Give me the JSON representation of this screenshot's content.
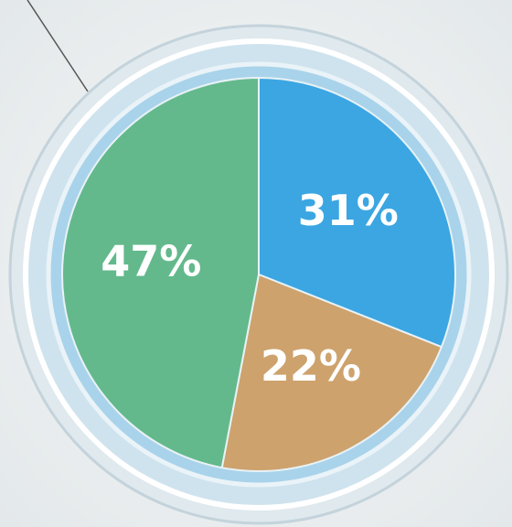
{
  "chart_data": {
    "type": "pie",
    "values": [
      31,
      22,
      47
    ],
    "value_labels": [
      "31%",
      "22%",
      "47%"
    ],
    "colors": [
      "#3ba6e2",
      "#cda26d",
      "#63b98c"
    ]
  }
}
